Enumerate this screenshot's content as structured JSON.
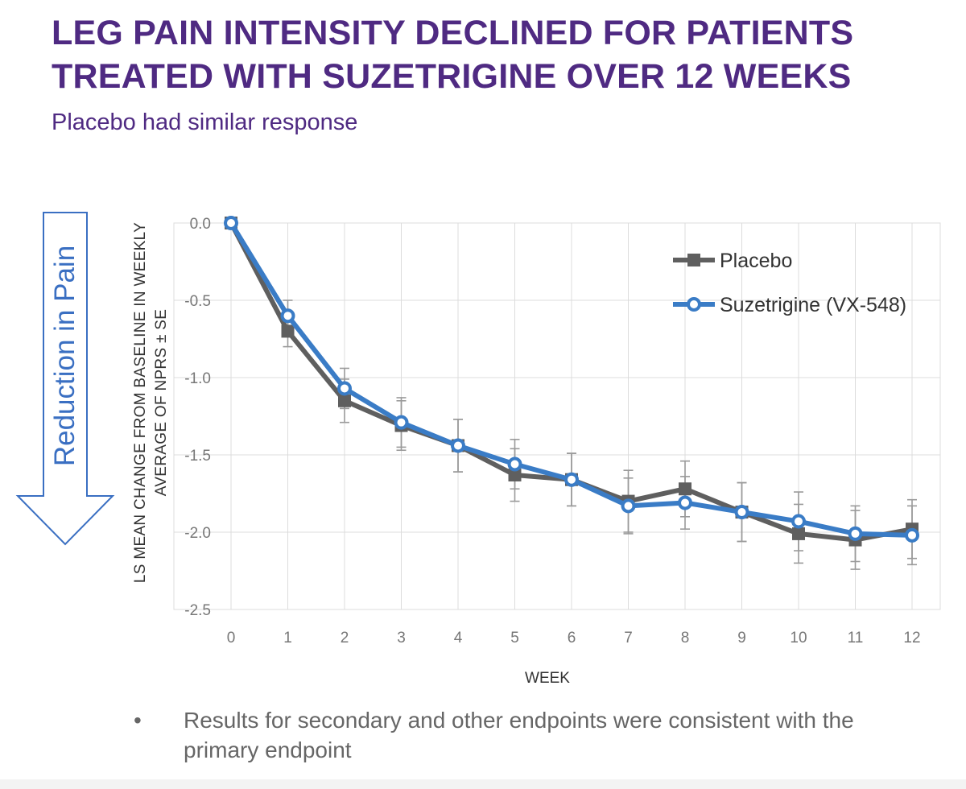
{
  "title": "LEG PAIN INTENSITY DECLINED FOR PATIENTS TREATED WITH SUZETRIGINE OVER 12 WEEKS",
  "subtitle": "Placebo had similar response",
  "arrow_label": "Reduction in Pain",
  "bullet": {
    "marker": "•",
    "text": "Results for secondary and other endpoints were consistent with the primary endpoint"
  },
  "colors": {
    "title": "#4f2a82",
    "placebo": "#5f5f5f",
    "suzetrigine": "#3a7cc6",
    "arrow": "#3a6fc2",
    "grid": "#dcdcdc"
  },
  "chart_data": {
    "type": "line",
    "xlabel": "WEEK",
    "ylabel": [
      "LS MEAN CHANGE FROM BASELINE IN WEEKLY",
      "AVERAGE OF NPRS ± SE"
    ],
    "x": [
      0,
      1,
      2,
      3,
      4,
      5,
      6,
      7,
      8,
      9,
      10,
      11,
      12
    ],
    "xlim": [
      0,
      12
    ],
    "ylim": [
      -2.5,
      0.0
    ],
    "yticks": [
      0.0,
      -0.5,
      -1.0,
      -1.5,
      -2.0,
      -2.5
    ],
    "ytick_labels": [
      "0.0",
      "-0.5",
      "-1.0",
      "-1.5",
      "-2.0",
      "-2.5"
    ],
    "grid": true,
    "legend_position": "top-right",
    "series": [
      {
        "name": "Placebo",
        "marker": "square",
        "values": [
          0.0,
          -0.7,
          -1.15,
          -1.31,
          -1.44,
          -1.63,
          -1.66,
          -1.8,
          -1.72,
          -1.87,
          -2.01,
          -2.05,
          -1.98
        ],
        "error": [
          0.0,
          0.1,
          0.14,
          0.16,
          0.17,
          0.17,
          0.17,
          0.2,
          0.18,
          0.19,
          0.19,
          0.19,
          0.19
        ]
      },
      {
        "name": "Suzetrigine (VX-548)",
        "marker": "open-circle",
        "values": [
          0.0,
          -0.6,
          -1.07,
          -1.29,
          -1.44,
          -1.56,
          -1.66,
          -1.83,
          -1.81,
          -1.87,
          -1.93,
          -2.01,
          -2.02
        ],
        "error": [
          0.0,
          0.1,
          0.13,
          0.16,
          0.17,
          0.16,
          0.17,
          0.18,
          0.17,
          0.19,
          0.19,
          0.18,
          0.19
        ]
      }
    ]
  }
}
